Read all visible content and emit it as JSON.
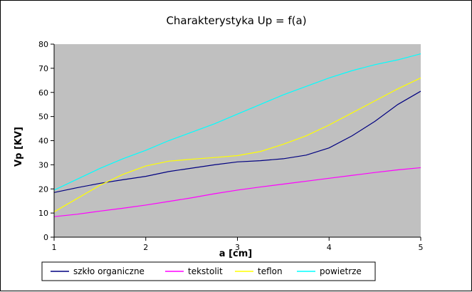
{
  "chart_data": {
    "type": "line",
    "title": "Charakterystyka Up = f(a)",
    "xlabel": "a [cm]",
    "ylabel": "Vp [KV]",
    "xlim": [
      1,
      5
    ],
    "ylim": [
      0,
      80
    ],
    "x_ticks": [
      "1",
      "2",
      "3",
      "4",
      "5"
    ],
    "y_ticks": [
      "0",
      "10",
      "20",
      "30",
      "40",
      "50",
      "60",
      "70",
      "80"
    ],
    "grid": false,
    "plot_background": "#c0c0c0",
    "legend_position": "bottom",
    "x": [
      1.0,
      1.25,
      1.5,
      1.75,
      2.0,
      2.25,
      2.5,
      2.75,
      3.0,
      3.25,
      3.5,
      3.75,
      4.0,
      4.25,
      4.5,
      4.75,
      5.0
    ],
    "series": [
      {
        "name": "szkło organiczne",
        "color": "#000080",
        "values": [
          18.5,
          20.5,
          22.3,
          23.8,
          25.2,
          27.2,
          28.6,
          30.0,
          31.2,
          31.7,
          32.5,
          34.0,
          37.0,
          42.0,
          48.0,
          55.0,
          60.5
        ]
      },
      {
        "name": "tekstolit",
        "color": "#ff00ff",
        "values": [
          8.5,
          9.5,
          10.8,
          12.0,
          13.3,
          14.8,
          16.3,
          18.0,
          19.5,
          20.8,
          22.0,
          23.2,
          24.4,
          25.6,
          26.8,
          27.9,
          28.8
        ]
      },
      {
        "name": "teflon",
        "color": "#ffff00",
        "values": [
          10.5,
          16.0,
          21.5,
          26.0,
          29.5,
          31.5,
          32.3,
          33.0,
          33.8,
          35.5,
          38.5,
          42.0,
          46.5,
          51.5,
          56.5,
          61.5,
          66.0
        ]
      },
      {
        "name": "powietrze",
        "color": "#00ffff",
        "values": [
          19.5,
          24.0,
          28.5,
          32.5,
          36.0,
          40.0,
          43.5,
          47.0,
          51.0,
          55.0,
          59.0,
          62.5,
          66.0,
          69.0,
          71.5,
          73.5,
          76.0
        ]
      }
    ]
  }
}
